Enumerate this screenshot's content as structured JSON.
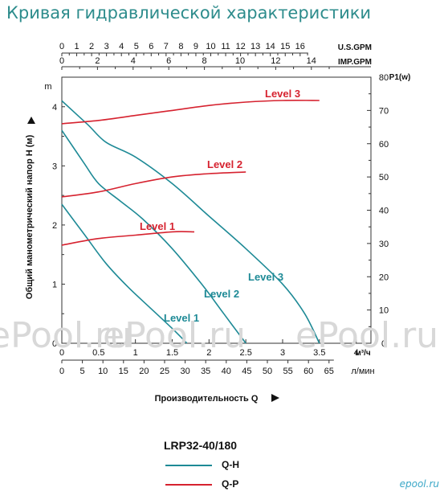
{
  "title": "Кривая гидравлической характеристики",
  "watermark": "ePool.ru",
  "brand": "epool.ru",
  "model": "LRP32-40/180",
  "legend": [
    {
      "label": "Q-H",
      "color": "#1e8a96"
    },
    {
      "label": "Q-P",
      "color": "#d6222f"
    }
  ],
  "colors": {
    "qh": "#1e8a96",
    "qp": "#d6222f"
  },
  "chart_data": {
    "type": "line",
    "x_primary": {
      "unit": "м³/ч",
      "ticks": [
        "0",
        "0.5",
        "1",
        "1.5",
        "2",
        "2.5",
        "3",
        "3.5",
        "4"
      ],
      "range": [
        0,
        4.2
      ]
    },
    "x_lmin": {
      "unit": "л/мин",
      "ticks": [
        "0",
        "5",
        "10",
        "15",
        "20",
        "25",
        "30",
        "35",
        "40",
        "45",
        "50",
        "55",
        "60",
        "65"
      ]
    },
    "x_usgpm": {
      "unit": "U.S.GPM",
      "ticks": [
        "0",
        "1",
        "2",
        "3",
        "4",
        "5",
        "6",
        "7",
        "8",
        "9",
        "10",
        "11",
        "12",
        "13",
        "14",
        "15",
        "16"
      ]
    },
    "x_impgpm": {
      "unit": "IMP.GPM",
      "ticks": [
        "0",
        "2",
        "4",
        "6",
        "8",
        "10",
        "12",
        "14"
      ]
    },
    "y_left": {
      "unit": "m",
      "ticks": [
        "0",
        "1",
        "2",
        "3",
        "4"
      ],
      "range": [
        0,
        4.5
      ],
      "label": "Общий манометрический напор H (м)"
    },
    "y_right": {
      "unit": "P1(w)",
      "ticks": [
        "0",
        "10",
        "20",
        "30",
        "40",
        "50",
        "60",
        "70",
        "80"
      ],
      "range": [
        0,
        80
      ]
    },
    "xlabel": "Производительность Q",
    "qh_series": [
      {
        "name": "Level 3",
        "x": [
          0,
          0.35,
          0.6,
          1.0,
          1.5,
          2.0,
          2.5,
          3.0,
          3.3,
          3.5
        ],
        "y": [
          4.1,
          3.7,
          3.4,
          3.15,
          2.7,
          2.15,
          1.6,
          1.0,
          0.5,
          0.0
        ]
      },
      {
        "name": "Level 2",
        "x": [
          0,
          0.3,
          0.5,
          0.8,
          1.1,
          1.5,
          1.9,
          2.2,
          2.5
        ],
        "y": [
          3.6,
          3.05,
          2.7,
          2.4,
          2.1,
          1.6,
          1.0,
          0.5,
          0.0
        ]
      },
      {
        "name": "Level 1",
        "x": [
          0,
          0.3,
          0.6,
          0.9,
          1.2,
          1.5,
          1.7
        ],
        "y": [
          2.35,
          1.85,
          1.35,
          0.95,
          0.6,
          0.25,
          0.0
        ]
      }
    ],
    "qp_series": [
      {
        "name": "Level 3",
        "x": [
          0,
          0.5,
          1.0,
          1.5,
          2.0,
          2.5,
          3.0,
          3.5
        ],
        "y": [
          66,
          67,
          68.5,
          70,
          71.5,
          72.5,
          73,
          73
        ]
      },
      {
        "name": "Level 2",
        "x": [
          0,
          0.5,
          1.0,
          1.5,
          2.0,
          2.5
        ],
        "y": [
          44,
          45.5,
          48,
          50,
          51,
          51.5
        ]
      },
      {
        "name": "Level 1",
        "x": [
          0,
          0.5,
          1.0,
          1.5,
          1.8
        ],
        "y": [
          29.5,
          31.5,
          32.5,
          33.5,
          33.5
        ]
      }
    ]
  }
}
